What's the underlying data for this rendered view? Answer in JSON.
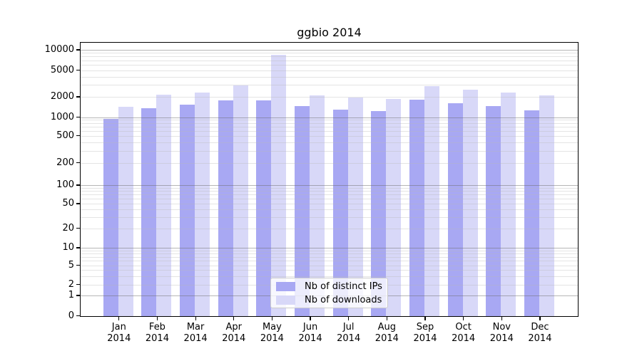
{
  "title": "ggbio 2014",
  "colors": {
    "ips": "#a8a8f3",
    "downloads": "#d8d8f8",
    "major_grid": "rgba(110,110,110,0.5)",
    "minor_grid": "rgba(185,185,185,0.38)",
    "axis": "#000000",
    "background": "#ffffff"
  },
  "legend": {
    "items": [
      {
        "key": "ips",
        "label": "Nb of distinct IPs"
      },
      {
        "key": "downloads",
        "label": "Nb of downloads"
      }
    ]
  },
  "chart_data": {
    "type": "bar",
    "title": "ggbio 2014",
    "categories": [
      "Jan 2014",
      "Feb 2014",
      "Mar 2014",
      "Apr 2014",
      "May 2014",
      "Jun 2014",
      "Jul 2014",
      "Aug 2014",
      "Sep 2014",
      "Oct 2014",
      "Nov 2014",
      "Dec 2014"
    ],
    "series": [
      {
        "key": "ips",
        "name": "Nb of distinct IPs",
        "values": [
          930,
          1340,
          1520,
          1760,
          1790,
          1470,
          1300,
          1240,
          1810,
          1600,
          1450,
          1250
        ]
      },
      {
        "key": "downloads",
        "name": "Nb of downloads",
        "values": [
          1440,
          2150,
          2300,
          2980,
          8400,
          2120,
          1950,
          1850,
          2870,
          2580,
          2340,
          2100
        ]
      }
    ],
    "xlabel": "",
    "ylabel": "",
    "yscale": "log-like (0 pinned at baseline)",
    "yticks": [
      0,
      1,
      2,
      5,
      10,
      20,
      50,
      100,
      200,
      500,
      1000,
      2000,
      5000,
      10000
    ],
    "ylim": [
      0,
      13000
    ],
    "grid": true,
    "legend_position": "lower center"
  }
}
